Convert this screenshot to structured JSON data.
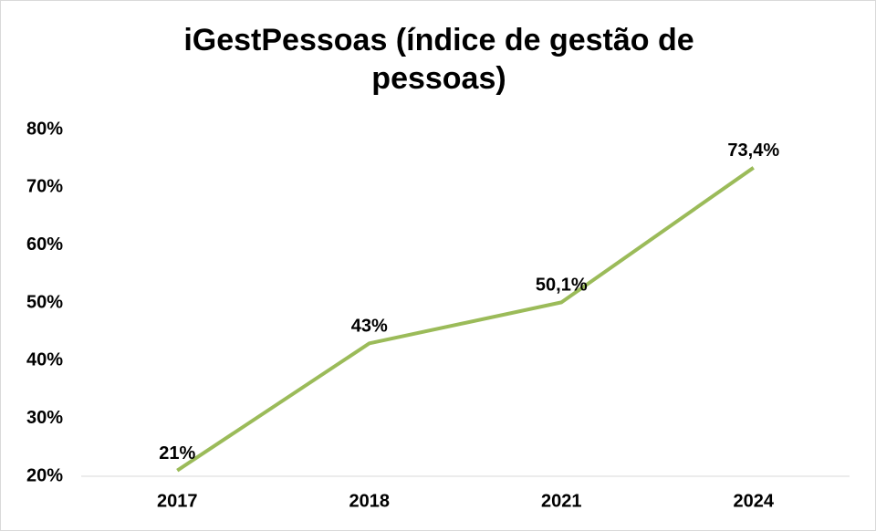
{
  "chart_data": {
    "type": "line",
    "title": "iGestPessoas (índice de gestão de pessoas)",
    "categories": [
      "2017",
      "2018",
      "2021",
      "2024"
    ],
    "series": [
      {
        "name": "iGestPessoas",
        "color": "#9bbb59",
        "values": [
          21,
          43,
          50.1,
          73.4
        ],
        "value_labels": [
          "21%",
          "43%",
          "50,1%",
          "73,4%"
        ]
      }
    ],
    "ylim": [
      20,
      80
    ],
    "yticks": [
      {
        "value": 20,
        "label": "20%"
      },
      {
        "value": 30,
        "label": "30%"
      },
      {
        "value": 40,
        "label": "40%"
      },
      {
        "value": 50,
        "label": "50%"
      },
      {
        "value": 60,
        "label": "60%"
      },
      {
        "value": 70,
        "label": "70%"
      },
      {
        "value": 80,
        "label": "80%"
      }
    ],
    "grid": false
  }
}
